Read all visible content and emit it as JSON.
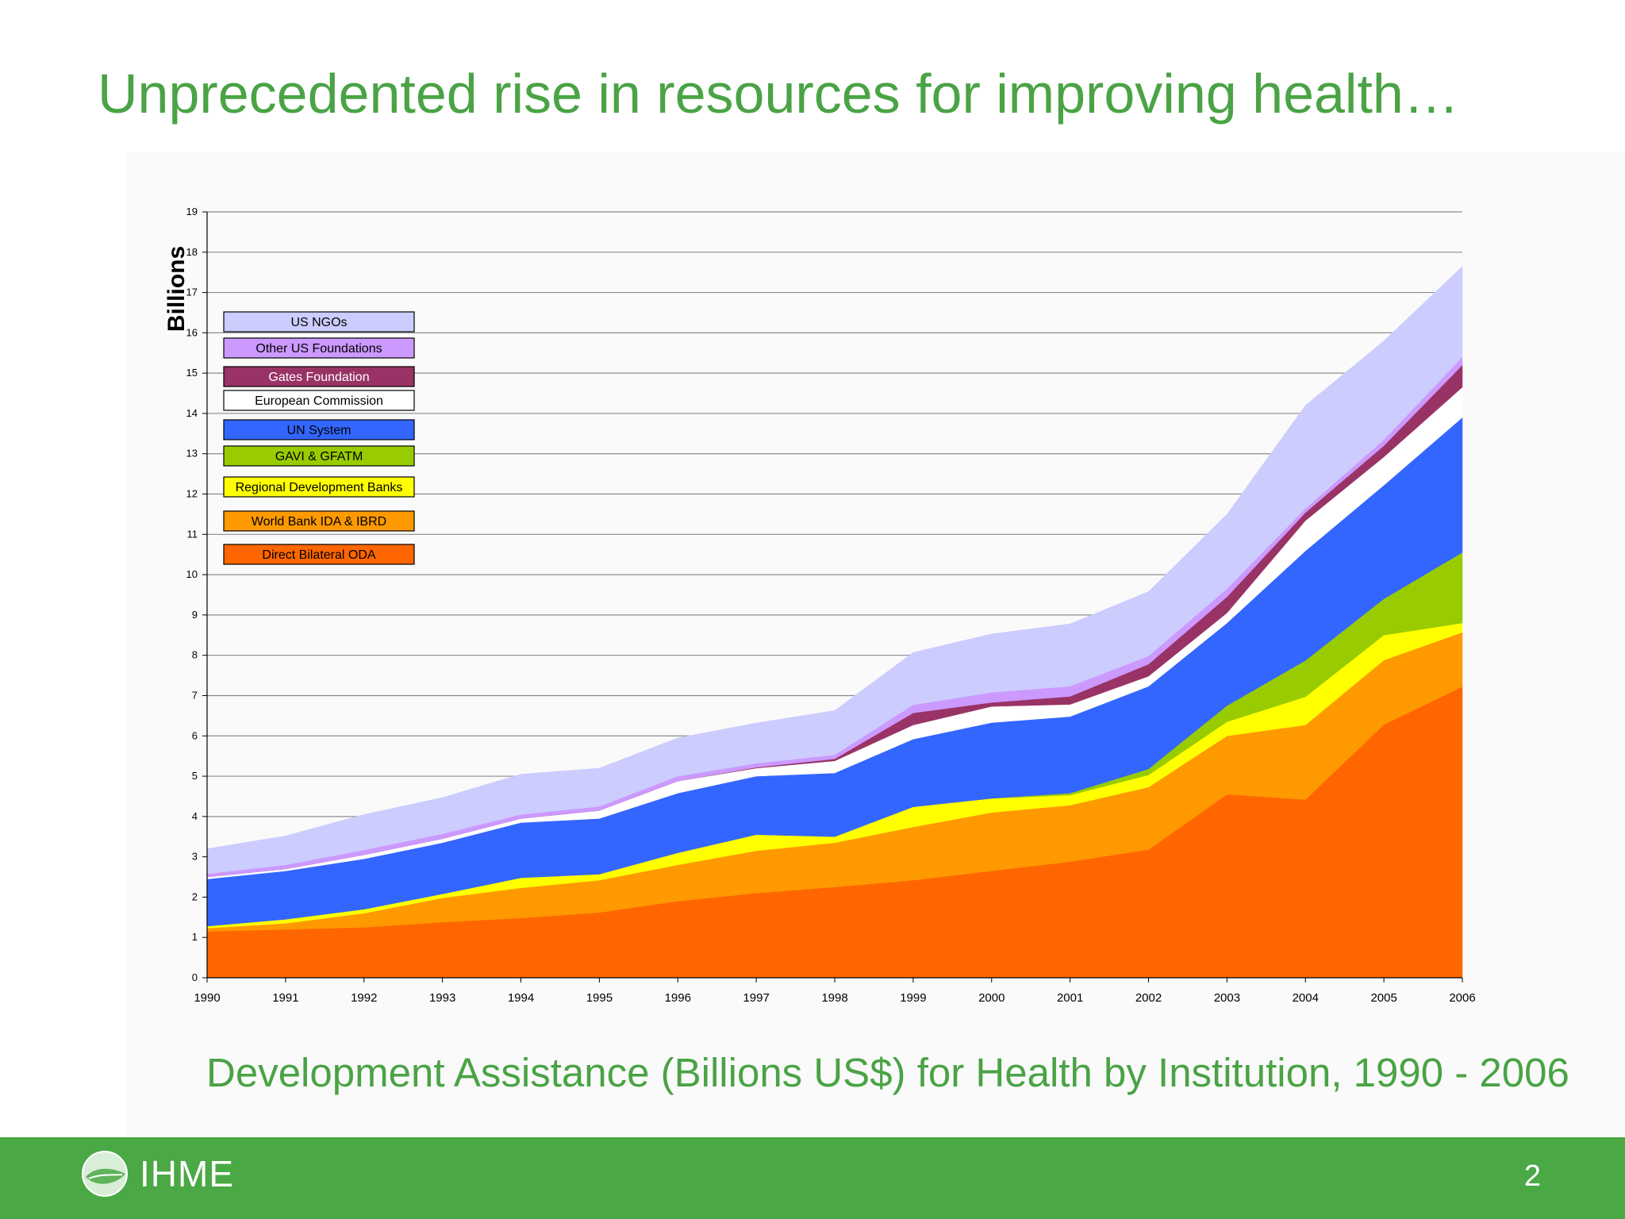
{
  "slide": {
    "title": "Unprecedented rise in resources for improving health…",
    "subtitle": "Development  Assistance (Billions US$) for Health by Institution, 1990 - 2006",
    "page_number": "2"
  },
  "logo": {
    "text": "IHME",
    "icon": "leaf-circle-icon"
  },
  "chart_data": {
    "type": "area",
    "stacked": true,
    "title": "",
    "xlabel": "",
    "ylabel": "Billions",
    "x": [
      1990,
      1991,
      1992,
      1993,
      1994,
      1995,
      1996,
      1997,
      1998,
      1999,
      2000,
      2001,
      2002,
      2003,
      2004,
      2005,
      2006
    ],
    "ylim": [
      0,
      19
    ],
    "yticks": [
      0,
      1,
      2,
      3,
      4,
      5,
      6,
      7,
      8,
      9,
      10,
      11,
      12,
      13,
      14,
      15,
      16,
      17,
      18,
      19
    ],
    "grid": true,
    "legend_position": "top-left",
    "series": [
      {
        "name": "Direct Bilateral ODA",
        "color": "#ff6600",
        "values": [
          1.15,
          1.2,
          1.25,
          1.38,
          1.48,
          1.62,
          1.9,
          2.1,
          2.25,
          2.42,
          2.65,
          2.88,
          3.18,
          4.55,
          4.42,
          6.28,
          7.22
        ]
      },
      {
        "name": "World Bank IDA & IBRD",
        "color": "#ff9900",
        "values": [
          0.08,
          0.15,
          0.35,
          0.6,
          0.75,
          0.8,
          0.9,
          1.05,
          1.1,
          1.32,
          1.45,
          1.4,
          1.55,
          1.45,
          1.85,
          1.6,
          1.35
        ]
      },
      {
        "name": "Regional Development Banks",
        "color": "#ffff00",
        "values": [
          0.05,
          0.1,
          0.1,
          0.1,
          0.25,
          0.15,
          0.3,
          0.4,
          0.15,
          0.5,
          0.35,
          0.25,
          0.3,
          0.35,
          0.7,
          0.62,
          0.23
        ]
      },
      {
        "name": "GAVI & GFATM",
        "color": "#99cc00",
        "values": [
          0,
          0,
          0,
          0,
          0,
          0,
          0,
          0,
          0,
          0,
          0,
          0.05,
          0.15,
          0.4,
          0.9,
          0.9,
          1.75
        ]
      },
      {
        "name": "UN System",
        "color": "#3366ff",
        "values": [
          1.17,
          1.2,
          1.25,
          1.27,
          1.37,
          1.38,
          1.48,
          1.45,
          1.58,
          1.68,
          1.88,
          1.9,
          2.05,
          2.05,
          2.72,
          2.82,
          3.35
        ]
      },
      {
        "name": "European Commission",
        "color": "#ffffff",
        "values": [
          0.05,
          0.05,
          0.1,
          0.1,
          0.1,
          0.2,
          0.3,
          0.2,
          0.3,
          0.35,
          0.4,
          0.3,
          0.25,
          0.25,
          0.75,
          0.7,
          0.75
        ]
      },
      {
        "name": "Gates Foundation",
        "color": "#993366",
        "values": [
          0,
          0,
          0,
          0,
          0,
          0,
          0,
          0.02,
          0.05,
          0.3,
          0.1,
          0.2,
          0.3,
          0.4,
          0.2,
          0.28,
          0.55
        ]
      },
      {
        "name": "Other US Foundations",
        "color": "#cc99ff",
        "values": [
          0.08,
          0.1,
          0.12,
          0.12,
          0.1,
          0.1,
          0.12,
          0.1,
          0.1,
          0.2,
          0.25,
          0.25,
          0.2,
          0.2,
          0.1,
          0.15,
          0.2
        ]
      },
      {
        "name": "US NGOs",
        "color": "#ccccff",
        "values": [
          0.62,
          0.72,
          0.88,
          0.9,
          1.0,
          0.95,
          0.95,
          1.0,
          1.1,
          1.3,
          1.45,
          1.55,
          1.6,
          1.85,
          2.56,
          2.45,
          2.25
        ]
      }
    ]
  }
}
